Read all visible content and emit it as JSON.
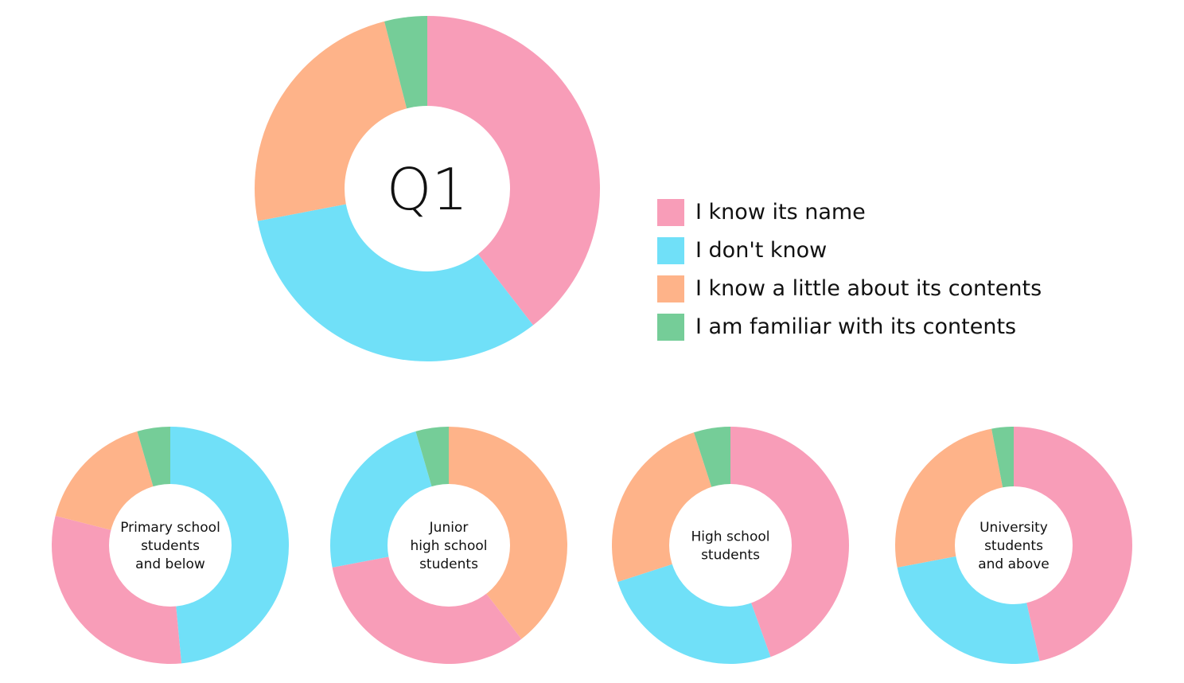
{
  "colors": {
    "i_know_its_name": "#f89db8",
    "i_dont_know": "#70e0f8",
    "i_know_a_little": "#feb389",
    "i_am_familiar": "#75cd98",
    "text": "#111111",
    "hole": "#ffffff"
  },
  "legend": [
    {
      "key": "i_know_its_name",
      "label": "I know its name"
    },
    {
      "key": "i_dont_know",
      "label": "I don't know"
    },
    {
      "key": "i_know_a_little",
      "label": "I know a little about its contents"
    },
    {
      "key": "i_am_familiar",
      "label": "I am familiar with its contents"
    }
  ],
  "chart_data": [
    {
      "type": "pie",
      "variant": "donut",
      "center_label": [
        "Q1"
      ],
      "slices": [
        {
          "key": "i_know_its_name",
          "value": 39.5
        },
        {
          "key": "i_dont_know",
          "value": 32.5
        },
        {
          "key": "i_know_a_little",
          "value": 24.0
        },
        {
          "key": "i_am_familiar",
          "value": 4.0
        }
      ]
    },
    {
      "type": "pie",
      "variant": "donut",
      "center_label": [
        "Primary school",
        "students",
        "and below"
      ],
      "slices": [
        {
          "key": "i_dont_know",
          "value": 48.5
        },
        {
          "key": "i_know_its_name",
          "value": 30.5
        },
        {
          "key": "i_know_a_little",
          "value": 16.5
        },
        {
          "key": "i_am_familiar",
          "value": 4.5
        }
      ]
    },
    {
      "type": "pie",
      "variant": "donut",
      "center_label": [
        "Junior",
        "high school",
        "students"
      ],
      "slices": [
        {
          "key": "i_know_a_little",
          "value": 39.5
        },
        {
          "key": "i_know_its_name",
          "value": 32.5
        },
        {
          "key": "i_dont_know",
          "value": 23.5
        },
        {
          "key": "i_am_familiar",
          "value": 4.5
        }
      ]
    },
    {
      "type": "pie",
      "variant": "donut",
      "center_label": [
        "High school",
        "students"
      ],
      "slices": [
        {
          "key": "i_know_its_name",
          "value": 44.5
        },
        {
          "key": "i_dont_know",
          "value": 25.5
        },
        {
          "key": "i_know_a_little",
          "value": 25.0
        },
        {
          "key": "i_am_familiar",
          "value": 5.0
        }
      ]
    },
    {
      "type": "pie",
      "variant": "donut",
      "center_label": [
        "University",
        "students",
        "and above"
      ],
      "slices": [
        {
          "key": "i_know_its_name",
          "value": 46.5
        },
        {
          "key": "i_dont_know",
          "value": 25.5
        },
        {
          "key": "i_know_a_little",
          "value": 25.0
        },
        {
          "key": "i_am_familiar",
          "value": 3.0
        }
      ]
    }
  ]
}
